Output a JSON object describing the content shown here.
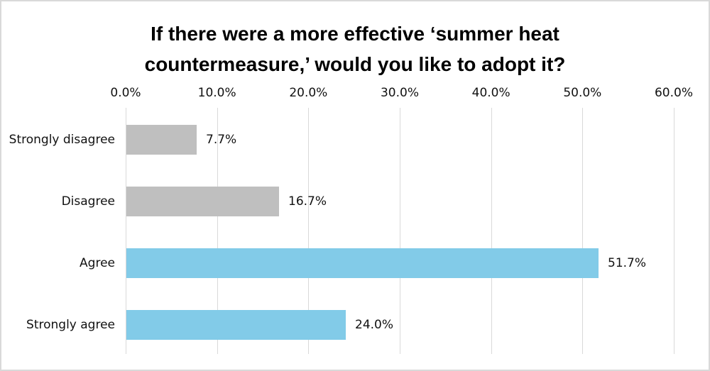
{
  "title_lines": [
    "If there were a more effective ‘summer heat",
    "countermeasure,’ would you like to adopt it?"
  ],
  "colors": {
    "bar_gray": "#bfbfbf",
    "bar_blue": "#82cbe8",
    "gridline": "#d9d9d9",
    "frame_border": "#d9d9d9",
    "text": "#111111",
    "title_text": "#000000",
    "background": "#ffffff"
  },
  "chart_data": {
    "type": "bar",
    "orientation": "horizontal",
    "title": "If there were a more effective ‘summer heat countermeasure,’ would you like to adopt it?",
    "categories": [
      "Strongly disagree",
      "Disagree",
      "Agree",
      "Strongly agree"
    ],
    "values": [
      7.7,
      16.7,
      51.7,
      24.0
    ],
    "value_labels": [
      "7.7%",
      "16.7%",
      "51.7%",
      "24.0%"
    ],
    "bar_colors": [
      "#bfbfbf",
      "#bfbfbf",
      "#82cbe8",
      "#82cbe8"
    ],
    "xlabel": "",
    "ylabel": "",
    "xlim": [
      0,
      60
    ],
    "x_tick_labels": [
      "0.0%",
      "10.0%",
      "20.0%",
      "30.0%",
      "40.0%",
      "50.0%",
      "60.0%"
    ],
    "axis_position": "top",
    "grid": "vertical",
    "legend": "none"
  }
}
